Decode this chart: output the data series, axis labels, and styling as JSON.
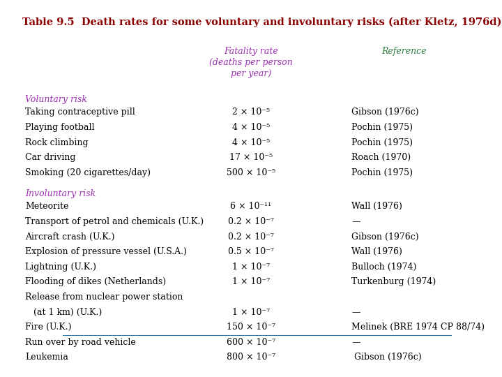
{
  "title": "Table 9.5  Death rates for some voluntary and involuntary risks (after Kletz, 1976d)",
  "title_color": "#8B0000",
  "title_fontsize": 10.5,
  "header_col1": "Fatality rate\n(deaths per person\nper year)",
  "header_col2": "Reference",
  "header_color": "#9B30B0",
  "header_ref_color": "#2E7B3E",
  "section1_label": "Voluntary risk",
  "section2_label": "Involuntary risk",
  "section_color": "#9B30B0",
  "rows_voluntary": [
    [
      "Taking contraceptive pill",
      "2 × 10⁻⁵",
      "Gibson (1976c)"
    ],
    [
      "Playing football",
      "4 × 10⁻⁵",
      "Pochin (1975)"
    ],
    [
      "Rock climbing",
      "4 × 10⁻⁵",
      "Pochin (1975)"
    ],
    [
      "Car driving",
      "17 × 10⁻⁵",
      "Roach (1970)"
    ],
    [
      "Smoking (20 cigarettes/day)",
      "500 × 10⁻⁵",
      "Pochin (1975)"
    ]
  ],
  "rows_involuntary": [
    [
      "Meteorite",
      "6 × 10⁻¹¹",
      "Wall (1976)",
      false
    ],
    [
      "Transport of petrol and chemicals (U.K.)",
      "0.2 × 10⁻⁷",
      "—",
      false
    ],
    [
      "Aircraft crash (U.K.)",
      "0.2 × 10⁻⁷",
      "Gibson (1976c)",
      false
    ],
    [
      "Explosion of pressure vessel (U.S.A.)",
      "0.5 × 10⁻⁷",
      "Wall (1976)",
      false
    ],
    [
      "Lightning (U.K.)",
      "1 × 10⁻⁷",
      "Bulloch (1974)",
      false
    ],
    [
      "Flooding of dikes (Netherlands)",
      "1 × 10⁻⁷",
      "Turkenburg (1974)",
      false
    ],
    [
      "Release from nuclear power station",
      "",
      "",
      true
    ],
    [
      "   (at 1 km) (U.K.)",
      "1 × 10⁻⁷",
      "—",
      false
    ],
    [
      "Fire (U.K.)",
      "150 × 10⁻⁷",
      "Melinek (BRE 1974 CP 88/74)",
      false
    ],
    [
      "Run over by road vehicle",
      "600 × 10⁻⁷",
      "—",
      false
    ],
    [
      "Leukemia",
      "800 × 10⁻⁷",
      " Gibson (1976c)",
      false
    ]
  ],
  "bg_color": "#FFFFFF",
  "text_color": "#000000",
  "font_family": "serif",
  "fontsize": 9.0
}
